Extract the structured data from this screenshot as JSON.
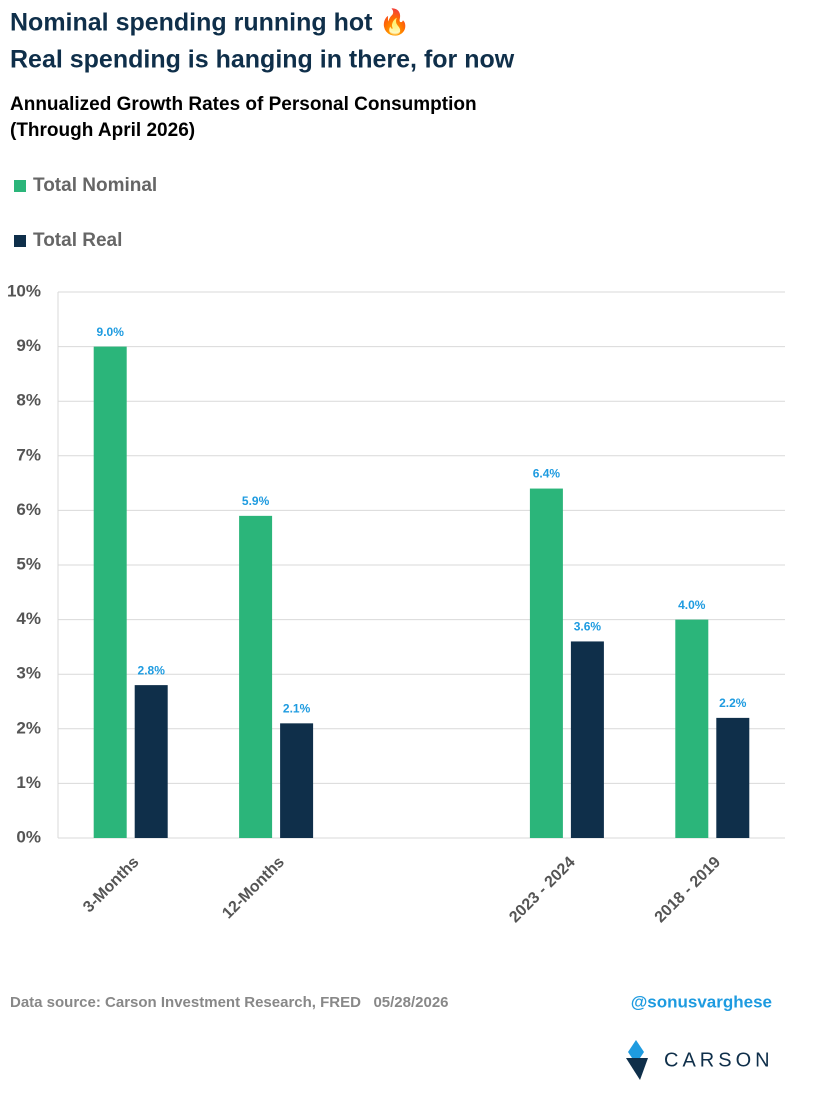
{
  "chart_data": {
    "type": "bar",
    "title": [
      "Nominal spending running hot 🔥",
      "Real spending is hanging in there, for now"
    ],
    "subtitle": [
      "Annualized Growth Rates of Personal Consumption",
      "(Through April 2026)"
    ],
    "categories": [
      "3-Months",
      "12-Months",
      null,
      "2023 - 2024",
      "2018 - 2019"
    ],
    "series": [
      {
        "name": "Total Nominal",
        "color": "#2bb57a",
        "values": [
          9.0,
          5.9,
          null,
          6.4,
          4.0
        ],
        "value_labels": [
          "9.0%",
          "5.9%",
          null,
          "6.4%",
          "4.0%"
        ]
      },
      {
        "name": "Total Real",
        "color": "#0f2f4a",
        "values": [
          2.8,
          2.1,
          null,
          3.6,
          2.2
        ],
        "value_labels": [
          "2.8%",
          "2.1%",
          null,
          "3.6%",
          "2.2%"
        ]
      }
    ],
    "ylim": [
      0,
      10
    ],
    "yticks": [
      {
        "value": 0,
        "label": "0%"
      },
      {
        "value": 1,
        "label": "1%"
      },
      {
        "value": 2,
        "label": "2%"
      },
      {
        "value": 3,
        "label": "3%"
      },
      {
        "value": 4,
        "label": "4%"
      },
      {
        "value": 5,
        "label": "5%"
      },
      {
        "value": 6,
        "label": "6%"
      },
      {
        "value": 7,
        "label": "7%"
      },
      {
        "value": 8,
        "label": "8%"
      },
      {
        "value": 9,
        "label": "9%"
      },
      {
        "value": 10,
        "label": "10%"
      }
    ],
    "grid": true,
    "source": "Data source: Carson Investment Research, FRED   05/28/2026",
    "handle": "@sonusvarghese",
    "brand": "CARSON"
  }
}
